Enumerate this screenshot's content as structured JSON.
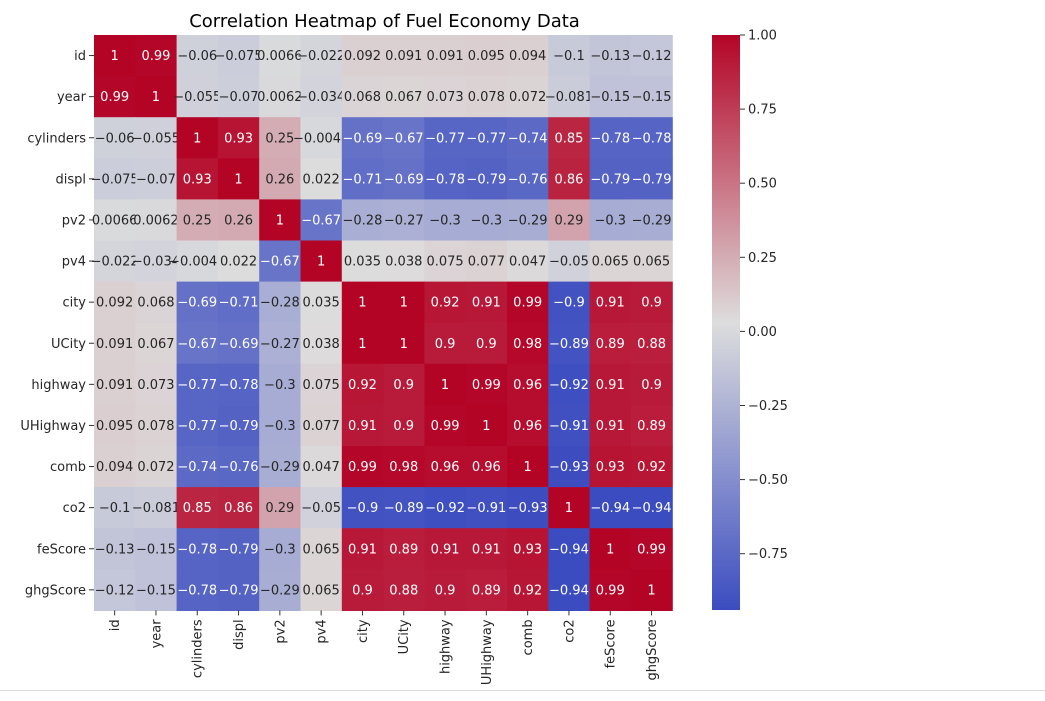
{
  "chart_data": {
    "type": "heatmap",
    "title": "Correlation Heatmap of Fuel Economy Data",
    "xlabel": "",
    "ylabel": "",
    "colormap": "coolwarm",
    "colors": {
      "low": "#3b4cc0",
      "mid": "#dddddd",
      "high": "#b40426"
    },
    "vmin": -0.94,
    "vmax": 1.0,
    "colorbar_ticks": [
      1.0,
      0.75,
      0.5,
      0.25,
      0.0,
      -0.25,
      -0.5,
      -0.75
    ],
    "colorbar_tick_labels": [
      "1.00",
      "0.75",
      "0.50",
      "0.25",
      "0.00",
      "−0.25",
      "−0.50",
      "−0.75"
    ],
    "labels": [
      "id",
      "year",
      "cylinders",
      "displ",
      "pv2",
      "pv4",
      "city",
      "UCity",
      "highway",
      "UHighway",
      "comb",
      "co2",
      "feScore",
      "ghgScore"
    ],
    "matrix": [
      [
        1,
        0.99,
        -0.06,
        -0.075,
        0.0066,
        -0.022,
        0.092,
        0.091,
        0.091,
        0.095,
        0.094,
        -0.1,
        -0.13,
        -0.12
      ],
      [
        0.99,
        1,
        -0.055,
        -0.07,
        0.0062,
        -0.034,
        0.068,
        0.067,
        0.073,
        0.078,
        0.072,
        -0.081,
        -0.15,
        -0.15
      ],
      [
        -0.06,
        -0.055,
        1,
        0.93,
        0.25,
        -0.0043,
        -0.69,
        -0.67,
        -0.77,
        -0.77,
        -0.74,
        0.85,
        -0.78,
        -0.78
      ],
      [
        -0.075,
        -0.07,
        0.93,
        1,
        0.26,
        0.022,
        -0.71,
        -0.69,
        -0.78,
        -0.79,
        -0.76,
        0.86,
        -0.79,
        -0.79
      ],
      [
        0.0066,
        0.0062,
        0.25,
        0.26,
        1,
        -0.67,
        -0.28,
        -0.27,
        -0.3,
        -0.3,
        -0.29,
        0.29,
        -0.3,
        -0.29
      ],
      [
        -0.022,
        -0.034,
        -0.0043,
        0.022,
        -0.67,
        1,
        0.035,
        0.038,
        0.075,
        0.077,
        0.047,
        -0.05,
        0.065,
        0.065
      ],
      [
        0.092,
        0.068,
        -0.69,
        -0.71,
        -0.28,
        0.035,
        1,
        1,
        0.92,
        0.91,
        0.99,
        -0.9,
        0.91,
        0.9
      ],
      [
        0.091,
        0.067,
        -0.67,
        -0.69,
        -0.27,
        0.038,
        1,
        1,
        0.9,
        0.9,
        0.98,
        -0.89,
        0.89,
        0.88
      ],
      [
        0.091,
        0.073,
        -0.77,
        -0.78,
        -0.3,
        0.075,
        0.92,
        0.9,
        1,
        0.99,
        0.96,
        -0.92,
        0.91,
        0.9
      ],
      [
        0.095,
        0.078,
        -0.77,
        -0.79,
        -0.3,
        0.077,
        0.91,
        0.9,
        0.99,
        1,
        0.96,
        -0.91,
        0.91,
        0.89
      ],
      [
        0.094,
        0.072,
        -0.74,
        -0.76,
        -0.29,
        0.047,
        0.99,
        0.98,
        0.96,
        0.96,
        1,
        -0.93,
        0.93,
        0.92
      ],
      [
        -0.1,
        -0.081,
        0.85,
        0.86,
        0.29,
        -0.05,
        -0.9,
        -0.89,
        -0.92,
        -0.91,
        -0.93,
        1,
        -0.94,
        -0.94
      ],
      [
        -0.13,
        -0.15,
        -0.78,
        -0.79,
        -0.3,
        0.065,
        0.91,
        0.89,
        0.91,
        0.91,
        0.93,
        -0.94,
        1,
        0.99
      ],
      [
        -0.12,
        -0.15,
        -0.78,
        -0.79,
        -0.29,
        0.065,
        0.9,
        0.88,
        0.9,
        0.89,
        0.92,
        -0.94,
        0.99,
        1
      ]
    ],
    "grid": false,
    "legend": "colorbar-right"
  }
}
